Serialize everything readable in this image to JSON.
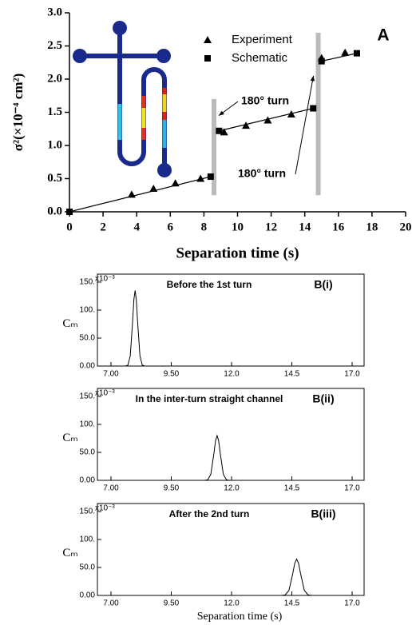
{
  "chart_data": [
    {
      "type": "scatter",
      "xlabel": "Separation time (s)",
      "ylabel": "σ²(×10⁻⁴ cm²)",
      "panel_label": "A",
      "xlim": [
        0,
        20
      ],
      "ylim": [
        0,
        3
      ],
      "xticks": [
        0,
        2,
        4,
        6,
        8,
        10,
        12,
        14,
        16,
        18,
        20
      ],
      "yticks": [
        {
          "value": 0,
          "label": "0.0"
        },
        {
          "value": 0.5,
          "label": "0.5"
        },
        {
          "value": 1,
          "label": "1.0"
        },
        {
          "value": 1.5,
          "label": "1.5"
        },
        {
          "value": 2,
          "label": "2.0"
        },
        {
          "value": 2.5,
          "label": "2.5"
        },
        {
          "value": 3,
          "label": "3.0"
        }
      ],
      "legend": "upper center",
      "series": [
        {
          "name": "Experiment",
          "color": "#000000",
          "marker": "triangle",
          "line": false,
          "x": [
            3.7,
            5.0,
            6.3,
            7.8,
            9.2,
            10.5,
            11.8,
            13.2,
            15.0,
            16.4
          ],
          "values": [
            0.26,
            0.35,
            0.43,
            0.5,
            1.2,
            1.3,
            1.38,
            1.47,
            2.32,
            2.4
          ]
        },
        {
          "name": "Schematic",
          "color": "#000000",
          "marker": "square",
          "line": true,
          "x": [
            0,
            8.4,
            8.9,
            14.5,
            15.0,
            17.1
          ],
          "values": [
            0,
            0.53,
            1.22,
            1.56,
            2.27,
            2.39
          ]
        }
      ],
      "turn_bars": [
        {
          "x": 8.6,
          "y": [
            0.25,
            1.7
          ]
        },
        {
          "x": 14.8,
          "y": [
            0.25,
            2.7
          ]
        }
      ],
      "annotations": [
        "180° turn",
        "180° turn"
      ]
    },
    {
      "type": "line",
      "title": "Before the 1st turn",
      "panel_label": "B(i)",
      "ylabel": "Cₘ",
      "y_multiplier": "x10⁻³",
      "xlim": [
        7,
        17
      ],
      "ylim": [
        0,
        150
      ],
      "xticks": [
        {
          "value": 7,
          "label": "7.00"
        },
        {
          "value": 9.5,
          "label": "9.50"
        },
        {
          "value": 12,
          "label": "12.0"
        },
        {
          "value": 14.5,
          "label": "14.5"
        },
        {
          "value": 17,
          "label": "17.0"
        }
      ],
      "yticks": [
        {
          "value": 0,
          "label": "0.00"
        },
        {
          "value": 50,
          "label": "50.0"
        },
        {
          "value": 100,
          "label": "100."
        },
        {
          "value": 150,
          "label": "150."
        }
      ],
      "color": "#000000",
      "x": [
        7.0,
        7.6,
        7.7,
        7.8,
        7.9,
        7.95,
        8.0,
        8.05,
        8.1,
        8.2,
        8.3,
        8.4,
        17.0
      ],
      "values": [
        0,
        0,
        1.5,
        18.3,
        82,
        119,
        135,
        119,
        82,
        18.3,
        1.5,
        0,
        0
      ]
    },
    {
      "type": "line",
      "title": "In the inter-turn straight channel",
      "panel_label": "B(ii)",
      "ylabel": "Cₘ",
      "y_multiplier": "x10⁻³",
      "xlim": [
        7,
        17
      ],
      "ylim": [
        0,
        150
      ],
      "xticks": [
        {
          "value": 7,
          "label": "7.00"
        },
        {
          "value": 9.5,
          "label": "9.50"
        },
        {
          "value": 12,
          "label": "12.0"
        },
        {
          "value": 14.5,
          "label": "14.5"
        },
        {
          "value": 17,
          "label": "17.0"
        }
      ],
      "yticks": [
        {
          "value": 0,
          "label": "0.00"
        },
        {
          "value": 50,
          "label": "50.0"
        },
        {
          "value": 100,
          "label": "100."
        },
        {
          "value": 150,
          "label": "150."
        }
      ],
      "color": "#000000",
      "x": [
        7.0,
        10.88,
        11.01,
        11.14,
        11.27,
        11.335,
        11.4,
        11.465,
        11.53,
        11.66,
        11.79,
        11.92,
        17.0
      ],
      "values": [
        0,
        0,
        0.9,
        10.8,
        48.5,
        70.6,
        80,
        70.6,
        48.5,
        10.8,
        0.9,
        0,
        0
      ]
    },
    {
      "type": "line",
      "title": "After the 2nd turn",
      "panel_label": "B(iii)",
      "ylabel": "Cₘ",
      "y_multiplier": "x10⁻³",
      "xlabel": "Separation time (s)",
      "xlim": [
        7,
        17
      ],
      "ylim": [
        0,
        150
      ],
      "xticks": [
        {
          "value": 7,
          "label": "7.00"
        },
        {
          "value": 9.5,
          "label": "9.50"
        },
        {
          "value": 12,
          "label": "12.0"
        },
        {
          "value": 14.5,
          "label": "14.5"
        },
        {
          "value": 17,
          "label": "17.0"
        }
      ],
      "yticks": [
        {
          "value": 0,
          "label": "0.00"
        },
        {
          "value": 50,
          "label": "50.0"
        },
        {
          "value": 100,
          "label": "100."
        },
        {
          "value": 150,
          "label": "150."
        }
      ],
      "color": "#000000",
      "x": [
        7.0,
        14.06,
        14.22,
        14.38,
        14.54,
        14.62,
        14.7,
        14.78,
        14.86,
        15.02,
        15.18,
        15.34,
        17.0
      ],
      "values": [
        0,
        0,
        0.7,
        8.8,
        39.5,
        57.3,
        65,
        57.3,
        39.5,
        8.8,
        0.7,
        0,
        0
      ]
    }
  ]
}
